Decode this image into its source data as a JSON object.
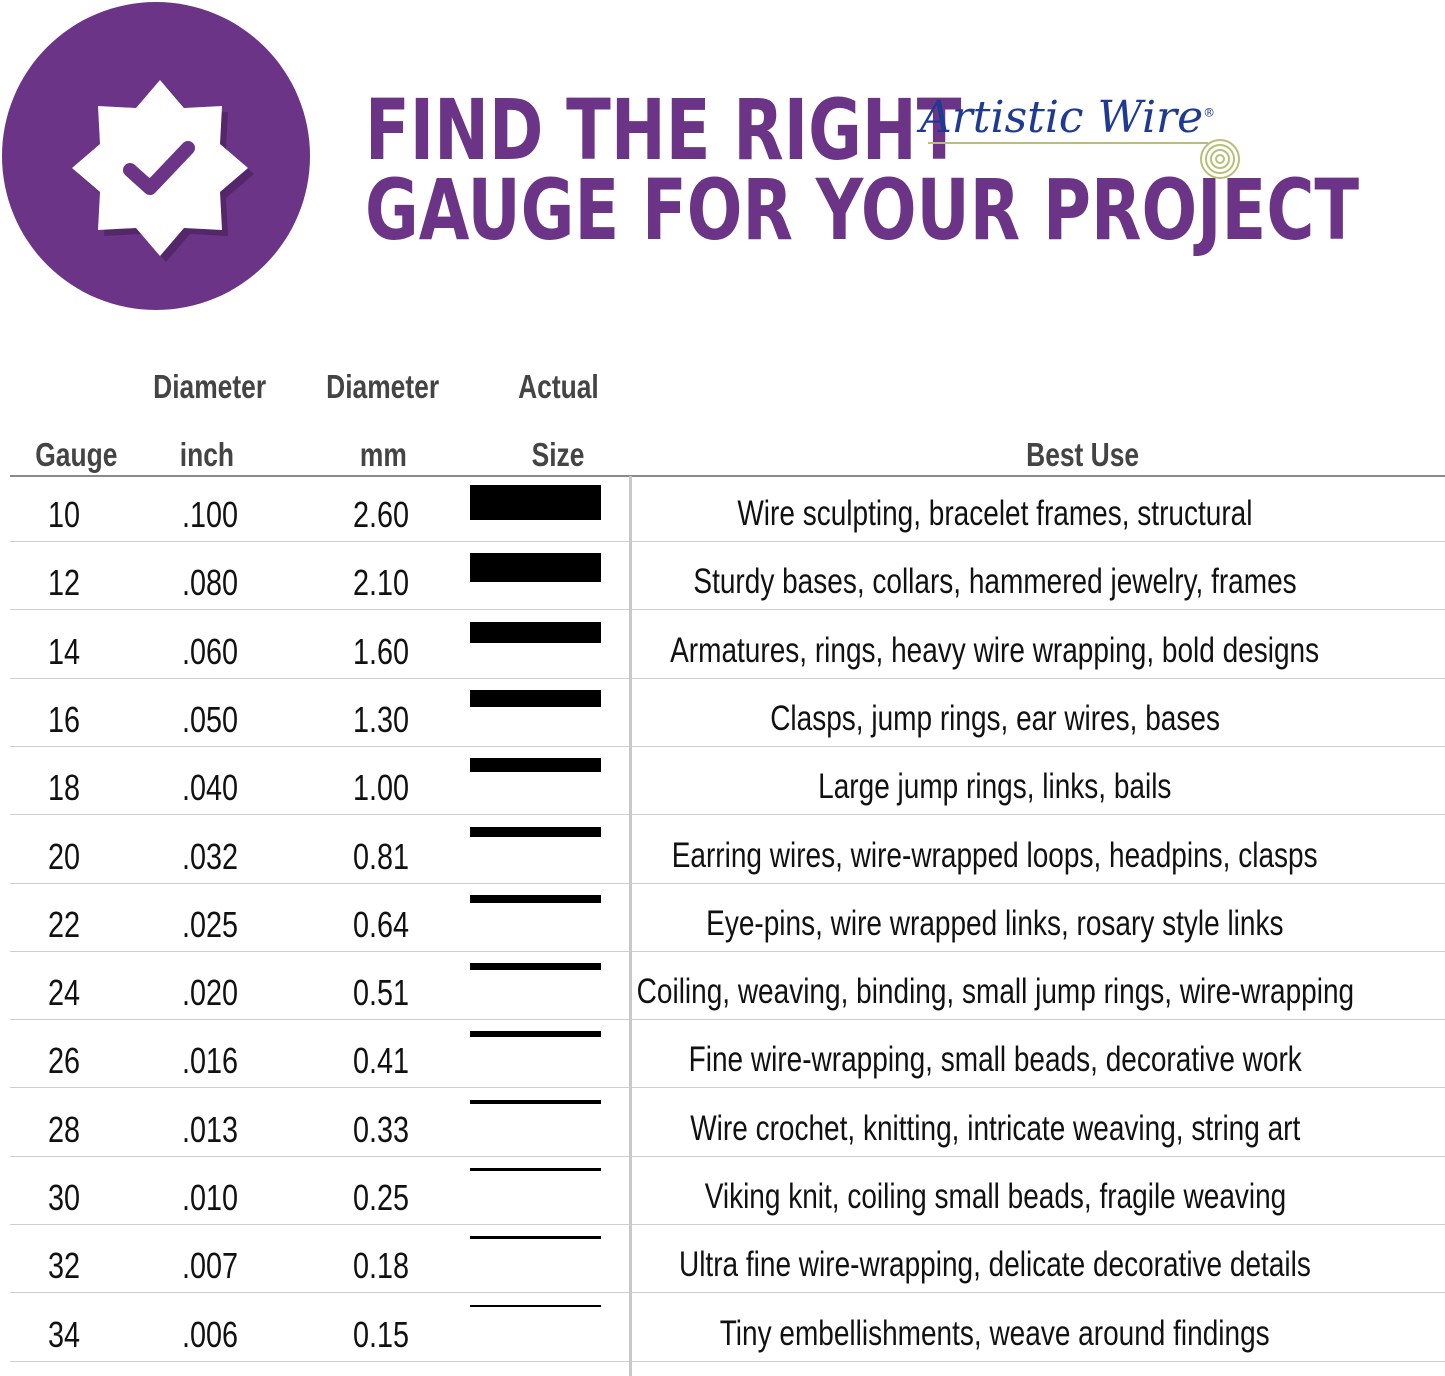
{
  "header": {
    "title_line1": "FIND THE RIGHT",
    "title_line2": "GAUGE FOR YOUR PROJECT",
    "brand_logo": "Artistic Wire",
    "brand_mark": "®",
    "badge_icon": "check-badge-icon",
    "accent_color": "#6b3487"
  },
  "table": {
    "columns": {
      "gauge": "Gauge",
      "inch_top": "Diameter",
      "inch_bottom": "inch",
      "mm_top": "Diameter",
      "mm_bottom": "mm",
      "size_top": "Actual",
      "size_bottom": "Size",
      "use": "Best Use"
    },
    "rows": [
      {
        "gauge": "10",
        "inch": ".100",
        "mm": "2.60",
        "use": "Wire sculpting, bracelet frames, structural"
      },
      {
        "gauge": "12",
        "inch": ".080",
        "mm": "2.10",
        "use": "Sturdy bases, collars, hammered jewelry, frames"
      },
      {
        "gauge": "14",
        "inch": ".060",
        "mm": "1.60",
        "use": "Armatures, rings, heavy wire wrapping, bold designs"
      },
      {
        "gauge": "16",
        "inch": ".050",
        "mm": "1.30",
        "use": "Clasps, jump rings, ear wires, bases"
      },
      {
        "gauge": "18",
        "inch": ".040",
        "mm": "1.00",
        "use": "Large jump rings, links, bails"
      },
      {
        "gauge": "20",
        "inch": ".032",
        "mm": "0.81",
        "use": "Earring wires, wire-wrapped loops, headpins, clasps"
      },
      {
        "gauge": "22",
        "inch": ".025",
        "mm": "0.64",
        "use": "Eye-pins, wire wrapped links, rosary style links"
      },
      {
        "gauge": "24",
        "inch": ".020",
        "mm": "0.51",
        "use": "Coiling, weaving, binding, small jump rings, wire-wrapping"
      },
      {
        "gauge": "26",
        "inch": ".016",
        "mm": "0.41",
        "use": "Fine wire-wrapping, small beads, decorative work"
      },
      {
        "gauge": "28",
        "inch": ".013",
        "mm": "0.33",
        "use": "Wire crochet, knitting, intricate weaving, string art"
      },
      {
        "gauge": "30",
        "inch": ".010",
        "mm": "0.25",
        "use": "Viking knit, coiling small beads, fragile weaving"
      },
      {
        "gauge": "32",
        "inch": ".007",
        "mm": "0.18",
        "use": "Ultra fine wire-wrapping, delicate decorative details"
      },
      {
        "gauge": "34",
        "inch": ".006",
        "mm": "0.15",
        "use": "Tiny embellishments, weave around findings"
      }
    ]
  }
}
